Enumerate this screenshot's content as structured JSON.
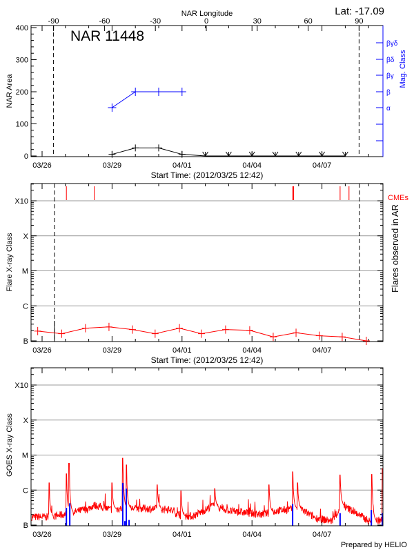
{
  "header": {
    "lat_label": "Lat: -17.09",
    "longitude_axis_label": "NAR Longitude",
    "region_title": "NAR 11448",
    "footer": "Prepared by HELIO"
  },
  "colors": {
    "axes": "#000000",
    "mag_class": "#0000ff",
    "flares": "#ff0000",
    "goes": "#ff0000",
    "goes_flare_markers": "#0000ff",
    "gridlines": "#999999"
  },
  "chart_data": [
    {
      "type": "line",
      "xlabel": "Start Time: (2012/03/25 12:42)",
      "ylabel": "NAR Area",
      "y2label": "Mag. Class",
      "top_axis_label": "NAR Longitude",
      "ylim": [
        0,
        400
      ],
      "yticks": [
        "0",
        "100",
        "200",
        "300",
        "400"
      ],
      "xticks": [
        "03/26",
        "03/29",
        "04/01",
        "04/04",
        "04/07"
      ],
      "longitude_ticks": [
        "-90",
        "-60",
        "-30",
        "0",
        "30",
        "60",
        "90"
      ],
      "limb_longitudes": [
        -90,
        90
      ],
      "mag_class_ticks": [
        "α",
        "β",
        "βγ",
        "βδ",
        "βγδ"
      ],
      "area_series": {
        "x": [
          "03/29 00:00",
          "03/30 00:00",
          "03/31 00:00",
          "04/01 00:00",
          "04/02 00:00",
          "04/03 00:00",
          "04/04 00:00",
          "04/05 00:00",
          "04/06 00:00",
          "04/07 00:00",
          "04/08 00:00"
        ],
        "values": [
          5,
          25,
          25,
          5,
          0,
          0,
          0,
          0,
          0,
          0,
          0
        ]
      },
      "mag_class_series": {
        "x": [
          "03/29 00:00",
          "03/30 00:00",
          "03/31 00:00",
          "04/01 00:00"
        ],
        "values": [
          "α",
          "β",
          "β",
          "β"
        ]
      }
    },
    {
      "type": "line",
      "xlabel": "Start Time: (2012/03/25 12:42)",
      "ylabel": "Flare X-ray Class",
      "y2label": "Flares observed in AR",
      "yscale": "log",
      "yticks": [
        "B",
        "C",
        "M",
        "X",
        "X10"
      ],
      "xticks": [
        "03/26",
        "03/29",
        "04/01",
        "04/04",
        "04/07"
      ],
      "grid": true,
      "cme_label": "CMEs",
      "cme_times": [
        "03/27 01:00",
        "03/28 05:40",
        "04/05 17:50",
        "04/05 18:50",
        "04/07 18:40",
        "04/08 03:50"
      ],
      "event_marker_time": "03/26 12:40",
      "flare_series": {
        "x": [
          "03/25 19:30",
          "03/26 20:10",
          "03/27 20:40",
          "03/28 20:50",
          "03/29 21:00",
          "03/30 20:20",
          "03/31 21:20",
          "04/01 20:00",
          "04/02 20:50",
          "04/03 21:40",
          "04/04 21:50",
          "04/05 21:20",
          "04/06 21:20",
          "04/07 20:50",
          "04/08 21:40"
        ],
        "values": [
          "B1.9",
          "B1.6",
          "B2.3",
          "B2.5",
          "B2.1",
          "B1.6",
          "B2.3",
          "B1.6",
          "B2.1",
          "B2.0",
          "B1.3",
          "B1.7",
          "B1.4",
          "B1.3",
          "B1.0"
        ]
      }
    },
    {
      "type": "line",
      "xlabel": "",
      "ylabel": "GOES X-ray Class",
      "yscale": "log",
      "yticks": [
        "B",
        "C",
        "M",
        "X",
        "X10"
      ],
      "xticks": [
        "03/26",
        "03/29",
        "04/01",
        "04/04",
        "04/07"
      ],
      "grid": true,
      "goes_baseline": {
        "x": [
          "03/25 14:40",
          "03/26 07:00",
          "03/26 18:00",
          "03/27 10:30",
          "03/28 00:00",
          "03/28 05:40",
          "03/28 22:20",
          "03/29 12:00",
          "03/30 09:40",
          "03/31 10:40",
          "04/01 00:00",
          "04/01 11:20",
          "04/02 01:00",
          "04/02 06:30",
          "04/03 02:00",
          "04/03 21:00",
          "04/04 10:30",
          "04/05 03:10",
          "04/06 00:40",
          "04/06 17:20",
          "04/07 10:20",
          "04/07 21:00",
          "04/08 08:10",
          "04/09 00:30",
          "04/09 14:10"
        ],
        "values": [
          "B1.7",
          "B1.7",
          "B1.9",
          "B2.4",
          "B3.0",
          "B3.7",
          "B2.8",
          "B3.0",
          "B3.0",
          "B2.8",
          "B1.8",
          "B1.8",
          "B2.8",
          "B3.6",
          "B2.5",
          "B2.2",
          "B2.0",
          "B2.6",
          "B3.0",
          "B1.6",
          "B1.3",
          "B3.6",
          "B2.5",
          "B1.3",
          "B1.4"
        ]
      },
      "goes_peaks": {
        "x": [
          "03/26 07:10",
          "03/27 01:00",
          "03/27 03:40",
          "03/28 23:50",
          "03/29 11:00",
          "03/29 14:40",
          "03/30 22:30",
          "03/31 22:50",
          "04/02 09:40",
          "04/04 17:30",
          "04/05 17:50",
          "04/05 22:50",
          "04/07 18:40",
          "04/09 03:20",
          "04/09 14:10"
        ],
        "values": [
          "C1.6",
          "C2.9",
          "C5.8",
          "C1.6",
          "C8.1",
          "C5.2",
          "C1.4",
          "B9.5",
          "C1.1",
          "C1.4",
          "C3.3",
          "C1.6",
          "C2.7",
          "C2.8",
          "C4.2"
        ]
      },
      "flare_markers": {
        "x": [
          "03/27 01:00",
          "03/27 04:30",
          "03/29 11:00",
          "03/29 13:10",
          "03/29 14:40",
          "03/29 17:30",
          "04/05 17:50",
          "04/07 18:40",
          "04/09 02:50",
          "04/09 14:10"
        ],
        "values": [
          "B3.1",
          "B4.2",
          "C1.6",
          "B1.3",
          "C1.1",
          "B1.4",
          "B4.0",
          "B2.2",
          "B2.7",
          "B2.2"
        ]
      }
    }
  ]
}
